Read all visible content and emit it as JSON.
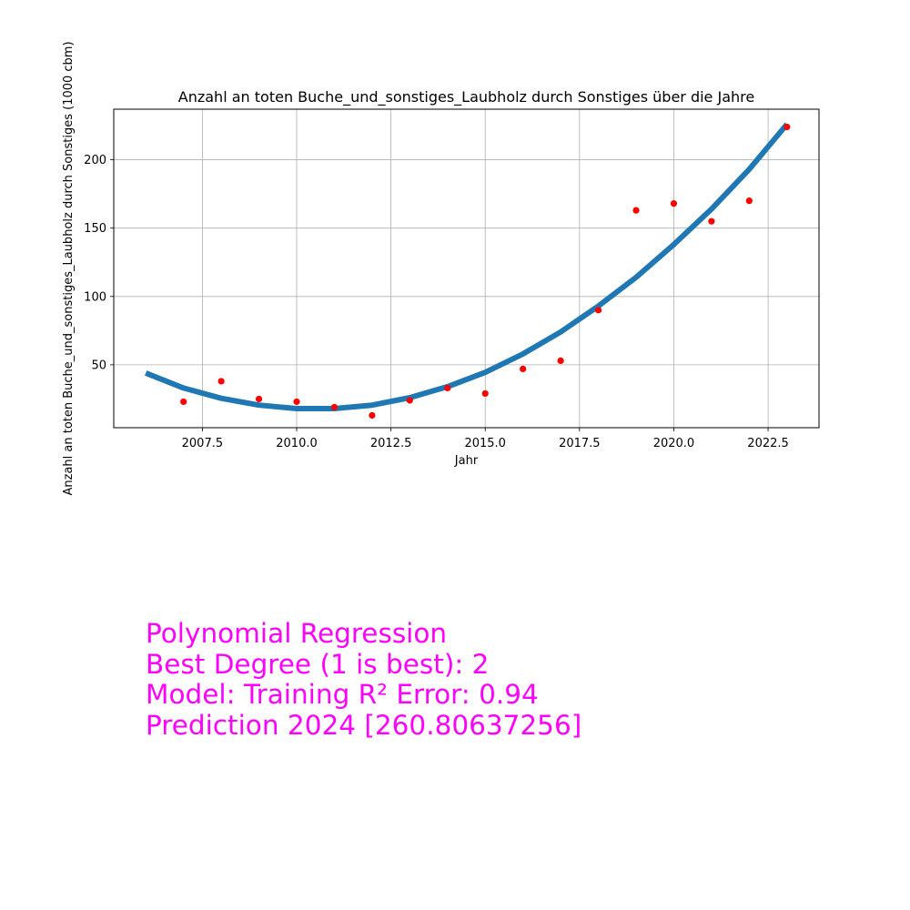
{
  "chart_data": {
    "type": "scatter",
    "title": "Anzahl an toten Buche_und_sonstiges_Laubholz durch Sonstiges über die Jahre",
    "xlabel": "Jahr",
    "ylabel": "Anzahl an toten Buche_und_sonstiges_Laubholz durch Sonstiges (1000 cbm)",
    "xlim": [
      2005.15,
      2023.85
    ],
    "ylim": [
      4,
      237
    ],
    "grid": true,
    "xticks": [
      2007.5,
      2010.0,
      2012.5,
      2015.0,
      2017.5,
      2020.0,
      2022.5
    ],
    "xtick_labels": [
      "2007.5",
      "2010.0",
      "2012.5",
      "2015.0",
      "2017.5",
      "2020.0",
      "2022.5"
    ],
    "yticks": [
      50,
      100,
      150,
      200
    ],
    "ytick_labels": [
      "50",
      "100",
      "150",
      "200"
    ],
    "series": [
      {
        "kind": "scatter",
        "color": "#ff0000",
        "x": [
          2007,
          2008,
          2009,
          2010,
          2011,
          2012,
          2013,
          2014,
          2015,
          2016,
          2017,
          2018,
          2019,
          2020,
          2021,
          2022,
          2023
        ],
        "y": [
          23,
          38,
          25,
          23,
          19,
          13,
          24,
          33,
          29,
          47,
          53,
          90,
          163,
          168,
          155,
          170,
          224
        ]
      },
      {
        "kind": "line",
        "color": "#1f77b4",
        "x": [
          2006,
          2007,
          2008,
          2009,
          2010,
          2011,
          2012,
          2013,
          2014,
          2015,
          2016,
          2017,
          2018,
          2019,
          2020,
          2021,
          2022,
          2023
        ],
        "y": [
          44,
          33,
          25.5,
          20.5,
          18,
          18,
          20.5,
          26,
          34,
          44.5,
          58,
          74,
          93,
          114,
          138,
          164,
          193,
          226
        ]
      }
    ]
  },
  "annotation": {
    "line1": "Polynomial Regression",
    "line2": "Best Degree (1 is best): 2",
    "line3": "Model: Training R² Error: 0.94",
    "line4": "Prediction 2024 [260.80637256]",
    "color": "#ff00ff"
  }
}
